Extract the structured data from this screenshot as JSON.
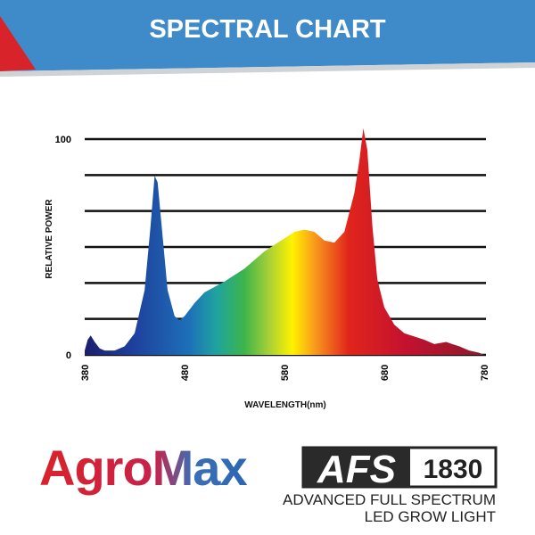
{
  "chart_data": {
    "type": "area",
    "title": "SPECTRAL CHART",
    "x_label": "WAVELENGTH(nm)",
    "y_label": "RELATIVE POWER",
    "x": [
      380,
      383,
      386,
      390,
      395,
      400,
      410,
      420,
      430,
      440,
      446,
      450,
      453,
      458,
      463,
      470,
      475,
      480,
      490,
      500,
      520,
      540,
      560,
      580,
      590,
      600,
      610,
      620,
      630,
      640,
      650,
      655,
      659,
      663,
      668,
      673,
      680,
      690,
      700,
      720,
      730,
      742,
      748,
      755,
      765,
      775,
      780
    ],
    "values": [
      2,
      7,
      9,
      6,
      3,
      2,
      2,
      4,
      10,
      30,
      60,
      83,
      80,
      55,
      30,
      18,
      16,
      18,
      24,
      29,
      34,
      40,
      48,
      54,
      57,
      58,
      57,
      53,
      52,
      57,
      75,
      90,
      105,
      95,
      60,
      35,
      22,
      14,
      10,
      7,
      5,
      6,
      5,
      4,
      2,
      1,
      0
    ],
    "xlim": [
      380,
      780
    ],
    "ylim": [
      0,
      100
    ],
    "xticks": [
      380,
      480,
      580,
      680,
      780
    ],
    "yticks": [
      0,
      {
        "value": 16.7,
        "label": null
      },
      {
        "value": 33.3,
        "label": null
      },
      {
        "value": 50,
        "label": null
      },
      {
        "value": 66.7,
        "label": null
      },
      {
        "value": 83.3,
        "label": null
      },
      100
    ],
    "grid": true
  },
  "brand": {
    "name": "AgroMax",
    "model_letters": "AFS",
    "model_number": "1830",
    "tagline_1": "ADVANCED FULL SPECTRUM",
    "tagline_2": "LED GROW LIGHT"
  }
}
